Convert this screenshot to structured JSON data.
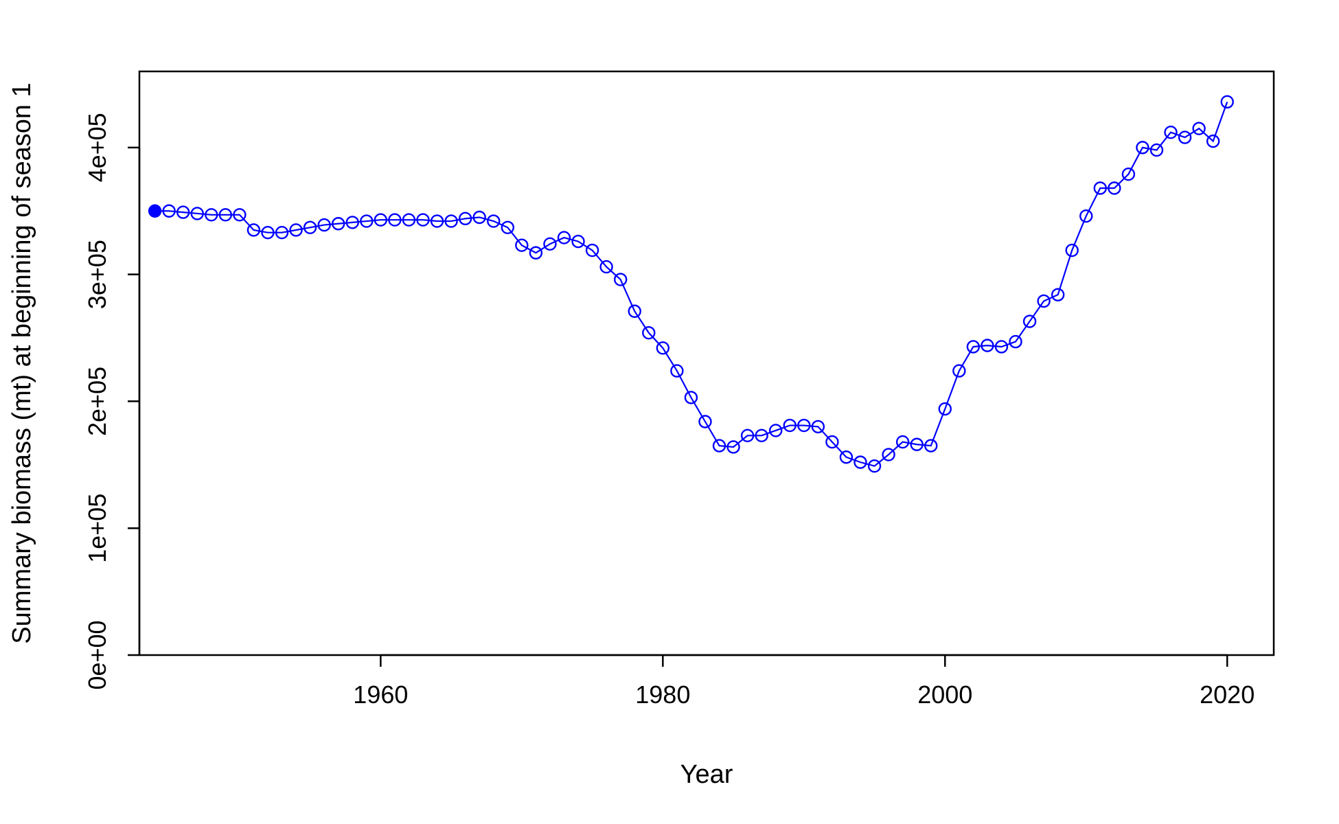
{
  "chart_data": {
    "type": "line",
    "xlabel": "Year",
    "ylabel": "Summary biomass (mt) at beginning of season 1",
    "xlim": [
      1942.9,
      2023.3
    ],
    "ylim": [
      0,
      460000
    ],
    "xticks": [
      1960,
      1980,
      2000,
      2020
    ],
    "yticks": [
      0,
      100000,
      200000,
      300000,
      400000
    ],
    "ytick_labels": [
      "0e+00",
      "1e+05",
      "2e+05",
      "3e+05",
      "4e+05"
    ],
    "grid": false,
    "series_color": "#0000ff",
    "first_point_filled": true,
    "x": [
      1944,
      1945,
      1946,
      1947,
      1948,
      1949,
      1950,
      1951,
      1952,
      1953,
      1954,
      1955,
      1956,
      1957,
      1958,
      1959,
      1960,
      1961,
      1962,
      1963,
      1964,
      1965,
      1966,
      1967,
      1968,
      1969,
      1970,
      1971,
      1972,
      1973,
      1974,
      1975,
      1976,
      1977,
      1978,
      1979,
      1980,
      1981,
      1982,
      1983,
      1984,
      1985,
      1986,
      1987,
      1988,
      1989,
      1990,
      1991,
      1992,
      1993,
      1994,
      1995,
      1996,
      1997,
      1998,
      1999,
      2000,
      2001,
      2002,
      2003,
      2004,
      2005,
      2006,
      2007,
      2008,
      2009,
      2010,
      2011,
      2012,
      2013,
      2014,
      2015,
      2016,
      2017,
      2018,
      2019,
      2020
    ],
    "y": [
      350000,
      350000,
      349000,
      348000,
      347000,
      347000,
      347000,
      335000,
      333000,
      333000,
      335000,
      337000,
      339000,
      340000,
      341000,
      342000,
      343000,
      343000,
      343000,
      343000,
      342000,
      342000,
      344000,
      345000,
      342000,
      337000,
      323000,
      317000,
      324000,
      329000,
      326000,
      319000,
      306000,
      296000,
      271000,
      254000,
      242000,
      224000,
      203000,
      184000,
      165000,
      164000,
      173000,
      173000,
      177000,
      181000,
      181000,
      180000,
      168000,
      156000,
      152000,
      149000,
      158000,
      168000,
      166000,
      165000,
      194000,
      224000,
      243000,
      244000,
      243000,
      247000,
      263000,
      279000,
      284000,
      319000,
      346000,
      368000,
      368000,
      379000,
      400000,
      398000,
      412000,
      408000,
      415000,
      405000,
      436000
    ]
  }
}
